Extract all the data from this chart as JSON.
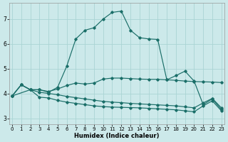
{
  "xlabel": "Humidex (Indice chaleur)",
  "bg_color": "#cce9ea",
  "grid_color": "#aad4d4",
  "line_color": "#1a6e68",
  "xlim": [
    -0.3,
    23.3
  ],
  "ylim": [
    2.75,
    7.65
  ],
  "xticks": [
    0,
    1,
    2,
    3,
    4,
    5,
    6,
    7,
    8,
    9,
    10,
    11,
    12,
    13,
    14,
    15,
    16,
    17,
    18,
    19,
    20,
    21,
    22,
    23
  ],
  "yticks": [
    3,
    4,
    5,
    6,
    7
  ],
  "curve_peak_x": [
    0,
    1,
    2,
    3,
    4,
    5,
    6,
    7,
    8,
    9,
    10,
    11,
    12,
    13,
    14,
    15,
    16,
    17,
    18,
    19,
    20,
    21,
    22,
    23
  ],
  "curve_peak_y": [
    3.9,
    4.35,
    4.15,
    4.15,
    4.05,
    4.25,
    5.1,
    6.2,
    6.55,
    6.65,
    7.0,
    7.27,
    7.32,
    6.55,
    6.25,
    6.2,
    6.18,
    4.55,
    4.72,
    4.9,
    4.5,
    3.55,
    3.78,
    3.35
  ],
  "curve_mid_x": [
    0,
    2,
    3,
    4,
    5,
    6,
    7,
    8,
    9,
    10,
    11,
    12,
    13,
    14,
    15,
    16,
    17,
    18,
    19,
    20,
    21,
    22,
    23
  ],
  "curve_mid_y": [
    3.9,
    4.15,
    4.15,
    4.08,
    4.18,
    4.32,
    4.42,
    4.38,
    4.42,
    4.58,
    4.62,
    4.62,
    4.6,
    4.58,
    4.57,
    4.57,
    4.55,
    4.53,
    4.5,
    4.48,
    4.47,
    4.46,
    4.44
  ],
  "curve_flat_x": [
    0,
    1,
    2,
    3,
    4,
    5,
    6,
    7,
    8,
    9,
    10,
    11,
    12,
    13,
    14,
    15,
    16,
    17,
    18,
    19,
    20,
    21,
    22,
    23
  ],
  "curve_flat_y": [
    3.9,
    4.35,
    4.15,
    4.05,
    4.0,
    3.95,
    3.88,
    3.83,
    3.78,
    3.73,
    3.68,
    3.65,
    3.63,
    3.6,
    3.58,
    3.56,
    3.54,
    3.52,
    3.5,
    3.46,
    3.42,
    3.62,
    3.8,
    3.42
  ],
  "curve_low_x": [
    0,
    1,
    2,
    3,
    4,
    5,
    6,
    7,
    8,
    9,
    10,
    11,
    12,
    13,
    14,
    15,
    16,
    17,
    18,
    19,
    20,
    21,
    22,
    23
  ],
  "curve_low_y": [
    3.9,
    4.35,
    4.15,
    3.85,
    3.82,
    3.72,
    3.65,
    3.6,
    3.55,
    3.5,
    3.47,
    3.45,
    3.44,
    3.43,
    3.42,
    3.4,
    3.38,
    3.36,
    3.34,
    3.3,
    3.26,
    3.5,
    3.7,
    3.3
  ]
}
